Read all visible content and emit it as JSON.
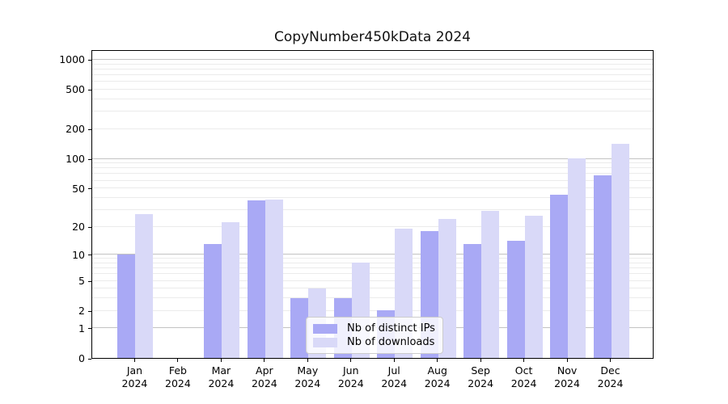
{
  "title": "CopyNumber450kData 2024",
  "chart_data": {
    "type": "bar",
    "title": "CopyNumber450kData 2024",
    "categories": [
      "Jan 2024",
      "Feb 2024",
      "Mar 2024",
      "Apr 2024",
      "May 2024",
      "Jun 2024",
      "Jul 2024",
      "Aug 2024",
      "Sep 2024",
      "Oct 2024",
      "Nov 2024",
      "Dec 2024"
    ],
    "series": [
      {
        "name": "Nb of distinct IPs",
        "color": "#a9a9f5",
        "values": [
          10,
          0,
          13,
          37,
          3,
          3,
          2,
          18,
          13,
          14,
          43,
          68
        ]
      },
      {
        "name": "Nb of downloads",
        "color": "#d9d9f8",
        "values": [
          27,
          0,
          22,
          38,
          4,
          8,
          19,
          24,
          29,
          26,
          100,
          140
        ]
      }
    ],
    "xlabel": "",
    "ylabel": "",
    "yscale": "log1p",
    "ylim": [
      0,
      1260
    ],
    "y_ticks": [
      0,
      1,
      2,
      5,
      10,
      20,
      50,
      100,
      200,
      500,
      1000
    ],
    "y_minor_gridlines": [
      3,
      4,
      6,
      7,
      8,
      9,
      30,
      40,
      60,
      70,
      80,
      90,
      300,
      400,
      600,
      700,
      800,
      900
    ],
    "y_major_gridlines": [
      1,
      10,
      100,
      1000
    ],
    "grid": true,
    "legend_position": "lower center",
    "legend": [
      {
        "label": "Nb of distinct IPs",
        "color": "#a9a9f5"
      },
      {
        "label": "Nb of downloads",
        "color": "#d9d9f8"
      }
    ]
  },
  "colors": {
    "bar_ips": "#a9a9f5",
    "bar_downloads": "#d9d9f8",
    "grid_major": "#c3c3c3",
    "grid_minor": "#ebebeb",
    "axis_frame": "#000000",
    "legend_border": "#cccccc"
  }
}
